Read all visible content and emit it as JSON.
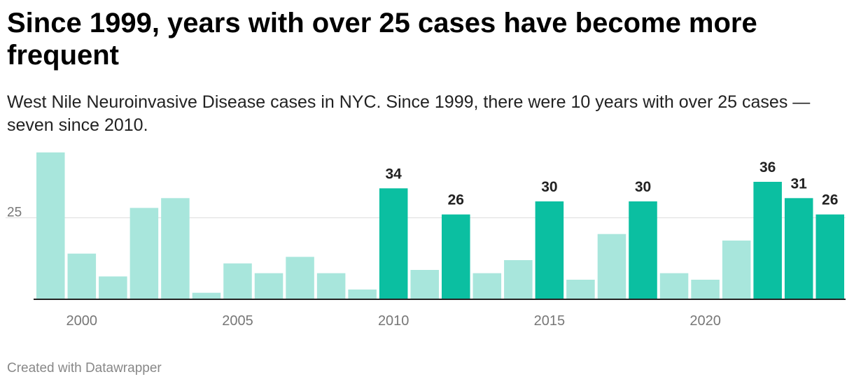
{
  "title": "Since 1999, years with over 25 cases have become more frequent",
  "subtitle": "West Nile Neuroinvasive Disease cases in NYC. Since 1999, there were 10 years with over 25 cases — seven since 2010.",
  "footer": "Created with Datawrapper",
  "colors": {
    "highlight": "#0bbfa1",
    "base": "#a8e6dc",
    "gridline": "#dddddd",
    "axis": "#222222",
    "tick_label": "#777777",
    "value_label": "#222222"
  },
  "chart_data": {
    "type": "bar",
    "title": "Since 1999, years with over 25 cases have become more frequent",
    "subtitle": "West Nile Neuroinvasive Disease cases in NYC. Since 1999, there were 10 years with over 25 cases — seven since 2010.",
    "categories": [
      1999,
      2000,
      2001,
      2002,
      2003,
      2004,
      2005,
      2006,
      2007,
      2008,
      2009,
      2010,
      2011,
      2012,
      2013,
      2014,
      2015,
      2016,
      2017,
      2018,
      2019,
      2020,
      2021,
      2022,
      2023,
      2024
    ],
    "values": [
      45,
      14,
      7,
      28,
      31,
      2,
      11,
      8,
      13,
      8,
      3,
      34,
      9,
      26,
      8,
      12,
      30,
      6,
      20,
      30,
      8,
      6,
      18,
      36,
      31,
      26
    ],
    "highlight_years": [
      2010,
      2012,
      2015,
      2018,
      2022,
      2023,
      2024
    ],
    "value_labels": {
      "2010": "34",
      "2012": "26",
      "2015": "30",
      "2018": "30",
      "2022": "36",
      "2023": "31",
      "2024": "26"
    },
    "x_ticks": [
      2000,
      2005,
      2010,
      2015,
      2020
    ],
    "y_ticks": [
      25
    ],
    "ylim": [
      0,
      45
    ],
    "xlabel": "",
    "ylabel": "",
    "grid": true
  }
}
